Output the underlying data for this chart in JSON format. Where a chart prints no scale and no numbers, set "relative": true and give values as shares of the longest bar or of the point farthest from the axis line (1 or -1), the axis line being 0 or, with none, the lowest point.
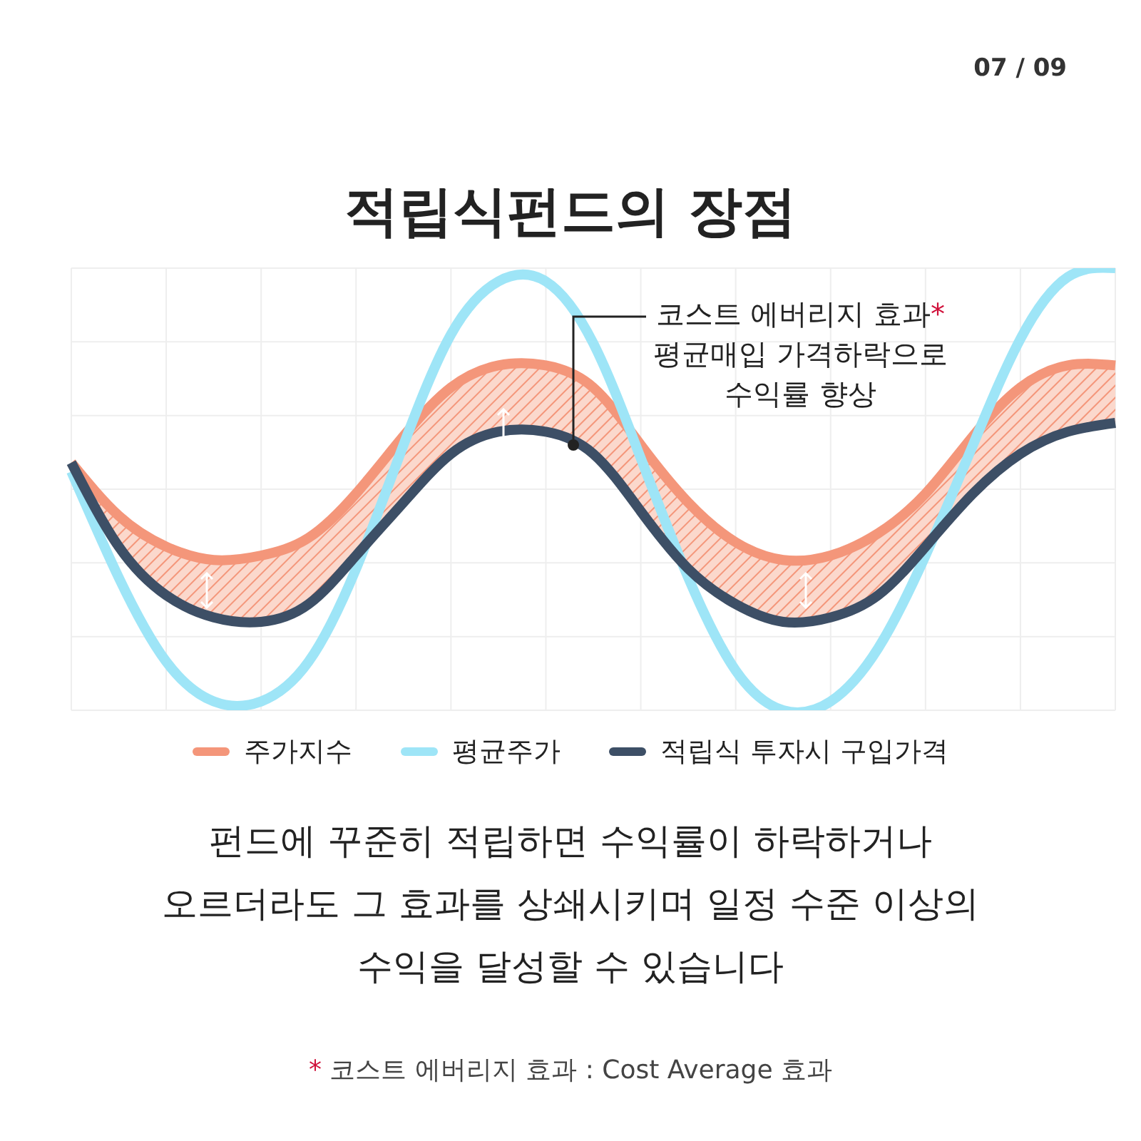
{
  "chart_data": {
    "type": "line",
    "title": "적립식펀드의 장점",
    "relative": true,
    "grid": true,
    "legend": "bottom",
    "marker": "none",
    "line_style": "solid",
    "tick_labels": false,
    "categories": [
      null,
      null,
      null,
      null,
      null,
      null,
      null,
      null,
      null,
      null,
      null,
      null,
      null,
      null,
      null,
      null,
      null,
      null,
      null,
      null,
      null,
      null,
      null
    ],
    "series": [
      {
        "name": "주가지수",
        "color": "#f4967a",
        "values": [
          0.56,
          0.44,
          0.37,
          0.34,
          0.35,
          0.39,
          0.49,
          0.62,
          0.73,
          0.78,
          0.78,
          0.73,
          0.6,
          0.47,
          0.38,
          0.34,
          0.35,
          0.4,
          0.49,
          0.62,
          0.73,
          0.78,
          0.78
        ],
        "lower": [
          0.56,
          0.37,
          0.26,
          0.21,
          0.2,
          0.24,
          0.35,
          0.47,
          0.58,
          0.63,
          0.63,
          0.58,
          0.45,
          0.32,
          0.24,
          0.2,
          0.21,
          0.26,
          0.37,
          0.49,
          0.58,
          0.63,
          0.65
        ],
        "upper": [
          0.56,
          0.44,
          0.37,
          0.34,
          0.35,
          0.39,
          0.49,
          0.62,
          0.73,
          0.78,
          0.78,
          0.73,
          0.6,
          0.47,
          0.38,
          0.34,
          0.35,
          0.4,
          0.49,
          0.62,
          0.73,
          0.78,
          0.78
        ]
      },
      {
        "name": "평균주가",
        "color": "#9ee5f7",
        "values": [
          0.54,
          0.3,
          0.11,
          0.02,
          0.02,
          0.11,
          0.32,
          0.6,
          0.85,
          0.97,
          0.97,
          0.83,
          0.57,
          0.3,
          0.09,
          0,
          0.02,
          0.14,
          0.35,
          0.6,
          0.84,
          0.98,
          1
        ]
      },
      {
        "name": "적립식 투자시 구입가격",
        "color": "#3d4f66",
        "values": [
          0.56,
          0.37,
          0.26,
          0.21,
          0.2,
          0.24,
          0.35,
          0.47,
          0.58,
          0.63,
          0.63,
          0.58,
          0.45,
          0.32,
          0.24,
          0.2,
          0.21,
          0.26,
          0.37,
          0.49,
          0.58,
          0.63,
          0.65
        ]
      }
    ],
    "annotations": [
      "07 / 09",
      "코스트 에버리지 효과*\n평균매입 가격하락으로\n수익률 향상",
      "펀드에 꾸준히 적립하면 수익률이 하락하거나\n오르더라도 그 효과를 상쇄시키며 일정 수준 이상의\n수익을 달성할 수 있습니다",
      "* 코스트 에버리지 효과 : Cost Average 효과"
    ]
  }
}
